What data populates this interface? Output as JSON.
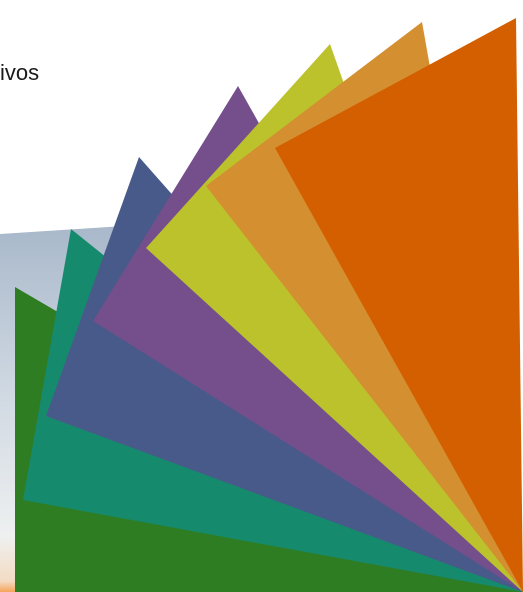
{
  "slide": {
    "title_fragment": "ivos"
  },
  "colors": {
    "background": "#ffffff",
    "sky_top": "#a8b8ca",
    "sky_mid": "#d2dbe4",
    "sky_bottom": "#f3dcc4",
    "sky_glow": "#f6a55a",
    "panel_green": "#2e7d22",
    "panel_teal": "#168a6c",
    "panel_blue": "#485a8a",
    "panel_purple": "#744f8c",
    "panel_lime": "#bcc22b",
    "panel_amber": "#d38f30",
    "panel_orange": "#d45f00"
  },
  "decoration": {
    "name": "color-fan-graphic",
    "panels": [
      "green",
      "teal",
      "blue",
      "purple",
      "lime",
      "amber",
      "orange"
    ]
  }
}
